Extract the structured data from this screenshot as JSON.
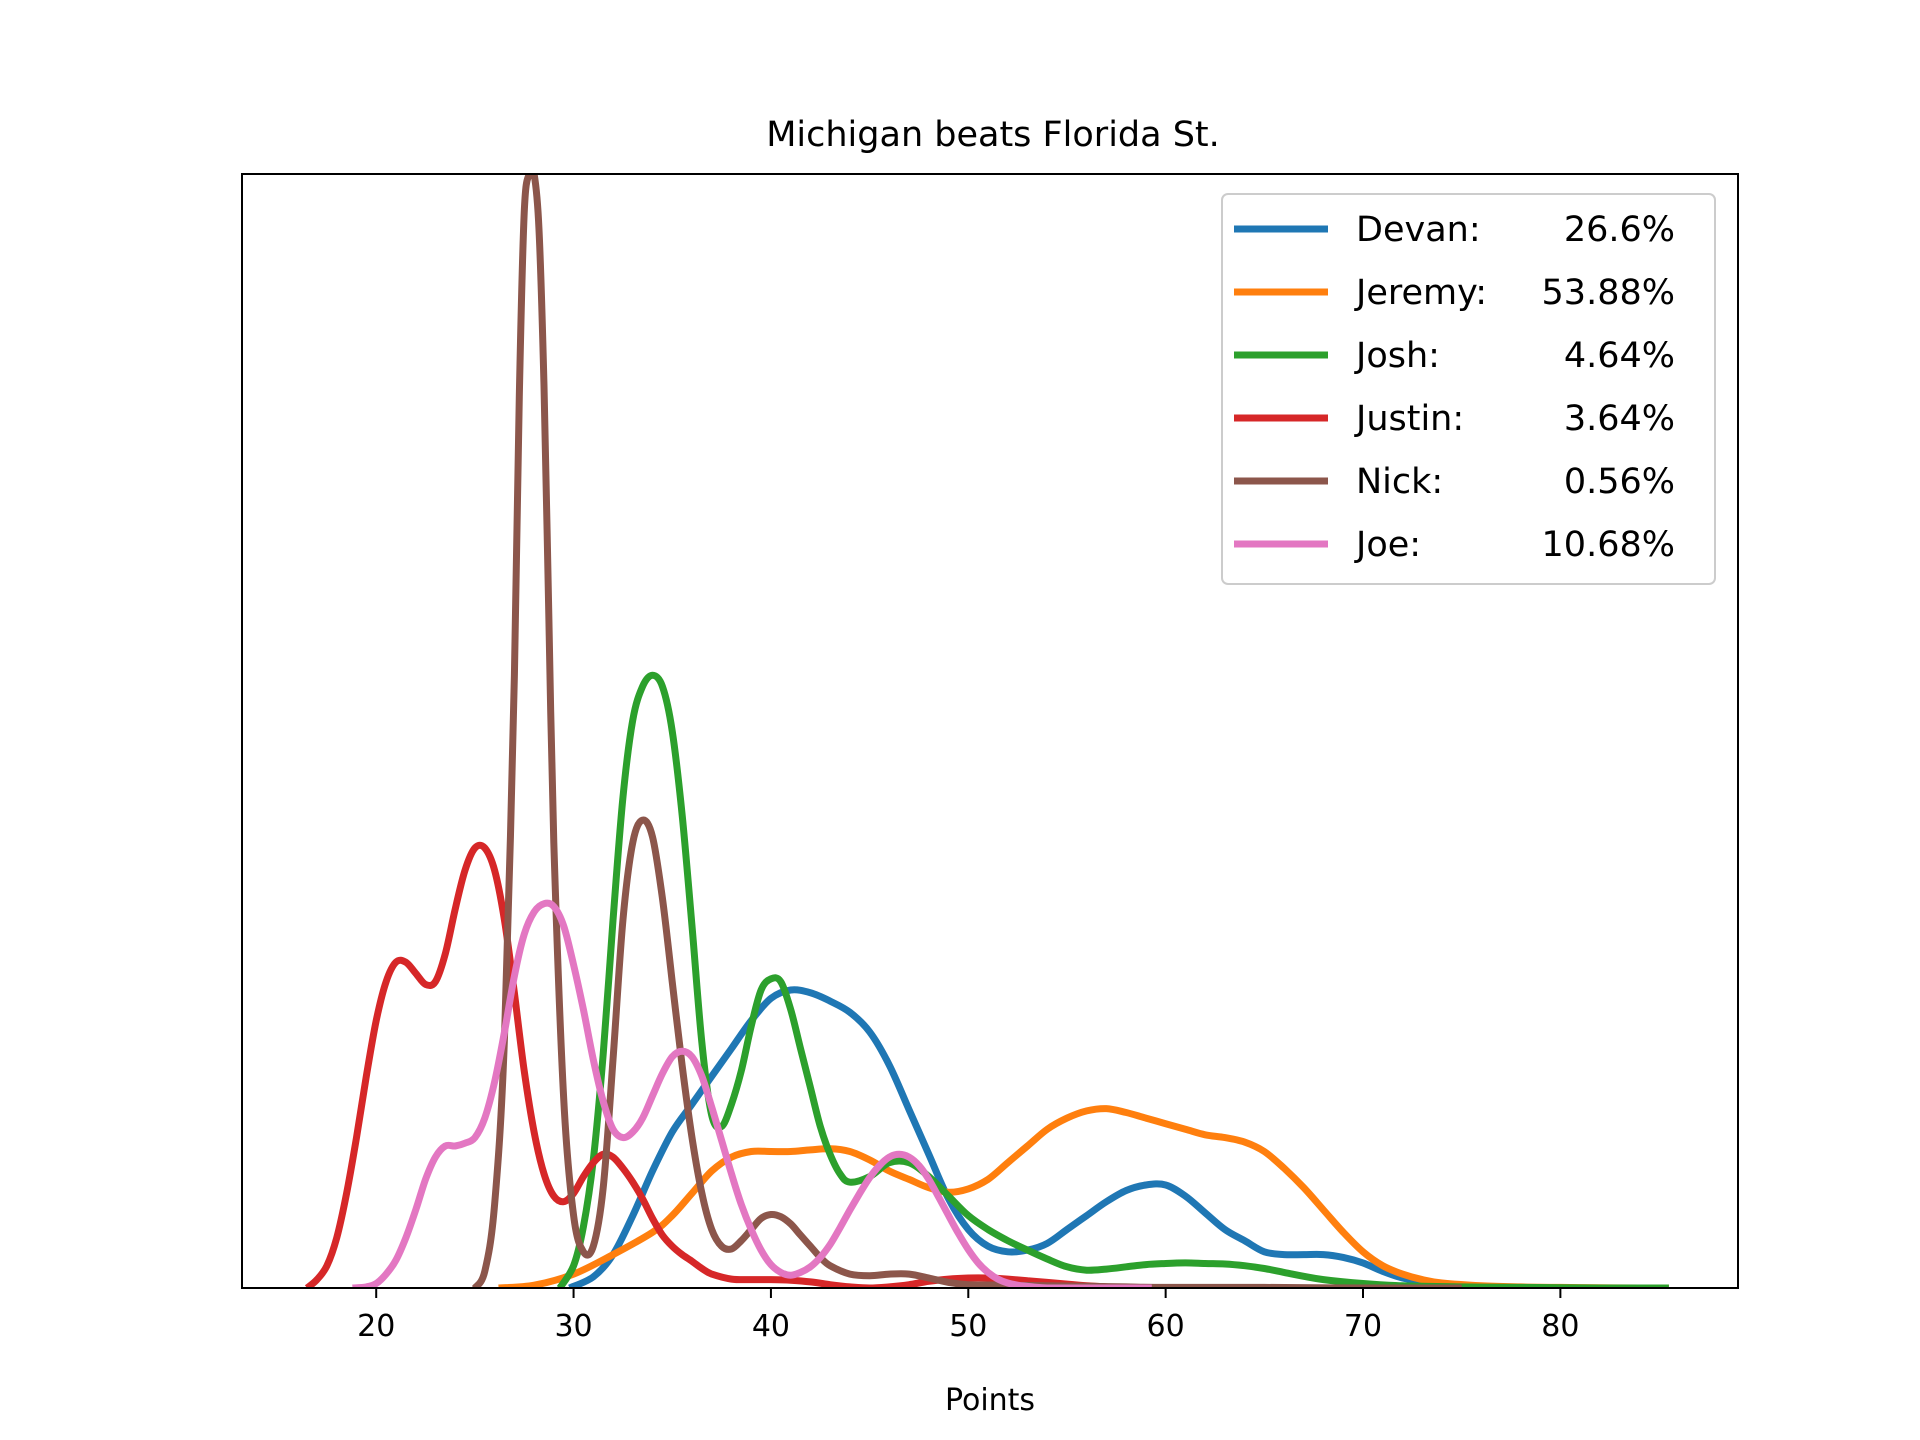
{
  "chart_data": {
    "type": "line",
    "title": "Michigan beats Florida St.",
    "xlabel": "Points",
    "ylabel": "",
    "xlim": [
      13.2,
      89.0
    ],
    "ylim": [
      0,
      0.2
    ],
    "xticks": [
      "20",
      "30",
      "40",
      "50",
      "60",
      "70",
      "80"
    ],
    "yticks_visible": false,
    "grid": false,
    "legend_position": "top-right",
    "legend": [
      {
        "label": "Devan:",
        "value": "26.6%"
      },
      {
        "label": "Jeremy:",
        "value": "53.88%"
      },
      {
        "label": "Josh:",
        "value": "4.64%"
      },
      {
        "label": "Justin:",
        "value": "3.64%"
      },
      {
        "label": "Nick:",
        "value": "0.56%"
      },
      {
        "label": "Joe:",
        "value": "10.68%"
      }
    ],
    "series": [
      {
        "name": "Devan",
        "color": "#1f77b4",
        "x": [
          29.8,
          31,
          32,
          33,
          34,
          35,
          36,
          37,
          38,
          39,
          40,
          41,
          42,
          43,
          44,
          45,
          46,
          47,
          48,
          49,
          50,
          51,
          52,
          53,
          54,
          55,
          56,
          57,
          58,
          59,
          60,
          61,
          62,
          63,
          64,
          65,
          66,
          67,
          68,
          69,
          70,
          71,
          72,
          73,
          74,
          75,
          76,
          77,
          78
        ],
        "y": [
          0.0,
          0.002,
          0.006,
          0.013,
          0.021,
          0.028,
          0.033,
          0.038,
          0.043,
          0.048,
          0.052,
          0.0535,
          0.053,
          0.0515,
          0.0495,
          0.046,
          0.04,
          0.032,
          0.024,
          0.016,
          0.0105,
          0.0075,
          0.0065,
          0.0068,
          0.008,
          0.0105,
          0.013,
          0.0155,
          0.0175,
          0.0185,
          0.0185,
          0.0165,
          0.0135,
          0.0105,
          0.0085,
          0.0065,
          0.006,
          0.006,
          0.006,
          0.0055,
          0.0045,
          0.003,
          0.0018,
          0.0012,
          0.0007,
          0.0004,
          0.0002,
          0.0001,
          0.0
        ]
      },
      {
        "name": "Jeremy",
        "color": "#ff7f0e",
        "x": [
          26.2,
          28,
          30,
          32,
          34,
          35,
          36,
          37,
          38,
          39,
          40,
          41,
          42,
          43,
          44,
          45,
          46,
          47,
          48,
          49,
          50,
          51,
          52,
          53,
          54,
          55,
          56,
          57,
          58,
          59,
          60,
          61,
          62,
          63,
          64,
          65,
          66,
          67,
          68,
          69,
          70,
          71,
          72,
          73,
          74,
          76,
          78,
          80,
          82,
          84,
          85.5
        ],
        "y": [
          0.0,
          0.0005,
          0.0025,
          0.006,
          0.01,
          0.013,
          0.017,
          0.021,
          0.0235,
          0.0245,
          0.0245,
          0.0245,
          0.0248,
          0.025,
          0.0245,
          0.023,
          0.021,
          0.0195,
          0.018,
          0.0172,
          0.0178,
          0.0195,
          0.0225,
          0.0255,
          0.0285,
          0.0305,
          0.0318,
          0.0322,
          0.0315,
          0.0305,
          0.0295,
          0.0285,
          0.0275,
          0.027,
          0.0262,
          0.0245,
          0.0215,
          0.018,
          0.014,
          0.01,
          0.0065,
          0.004,
          0.0025,
          0.0015,
          0.0009,
          0.0004,
          0.0002,
          0.0001,
          5e-05,
          0.0,
          0.0
        ]
      },
      {
        "name": "Josh",
        "color": "#2ca02c",
        "x": [
          29.3,
          30,
          30.5,
          31,
          31.5,
          32,
          32.5,
          33,
          33.5,
          34,
          34.5,
          35,
          35.5,
          36,
          36.5,
          37,
          37.5,
          38,
          38.5,
          39,
          39.5,
          40,
          40.5,
          41,
          41.5,
          42,
          42.5,
          43,
          43.5,
          44,
          45,
          46,
          47,
          48,
          49,
          50,
          51,
          52,
          53,
          54,
          55,
          56,
          57,
          58,
          59,
          60,
          61,
          62,
          63,
          64,
          65,
          66,
          67,
          68,
          70,
          72,
          75,
          78,
          82,
          85.5
        ],
        "y": [
          0.0,
          0.004,
          0.011,
          0.023,
          0.042,
          0.066,
          0.088,
          0.102,
          0.108,
          0.11,
          0.108,
          0.1,
          0.085,
          0.065,
          0.044,
          0.031,
          0.029,
          0.033,
          0.039,
          0.047,
          0.0535,
          0.0555,
          0.055,
          0.05,
          0.043,
          0.036,
          0.029,
          0.024,
          0.0205,
          0.019,
          0.02,
          0.0225,
          0.0225,
          0.02,
          0.0165,
          0.013,
          0.0105,
          0.0085,
          0.0068,
          0.0052,
          0.0038,
          0.0032,
          0.0034,
          0.0038,
          0.0042,
          0.0044,
          0.0045,
          0.0044,
          0.0043,
          0.004,
          0.0035,
          0.0028,
          0.0021,
          0.0015,
          0.0008,
          0.0004,
          0.0002,
          0.0001,
          0.0,
          0.0
        ]
      },
      {
        "name": "Justin",
        "color": "#d62728",
        "x": [
          16.5,
          17,
          17.5,
          18,
          18.5,
          19,
          19.5,
          20,
          20.5,
          21,
          21.5,
          22,
          22.5,
          23,
          23.5,
          24,
          24.5,
          25,
          25.5,
          26,
          26.5,
          27,
          27.5,
          28,
          28.5,
          29,
          29.5,
          30,
          30.5,
          31,
          31.5,
          32,
          32.5,
          33,
          33.5,
          34,
          34.5,
          35,
          35.5,
          36,
          36.5,
          37,
          38,
          39,
          40,
          41,
          42,
          43,
          44,
          45,
          46,
          47,
          48,
          49,
          50,
          51,
          52,
          53,
          54,
          55,
          56,
          57,
          58
        ],
        "y": [
          0.0,
          0.0015,
          0.004,
          0.009,
          0.017,
          0.027,
          0.038,
          0.048,
          0.055,
          0.0585,
          0.0585,
          0.0565,
          0.0545,
          0.055,
          0.06,
          0.068,
          0.075,
          0.079,
          0.079,
          0.075,
          0.066,
          0.053,
          0.039,
          0.028,
          0.0205,
          0.0165,
          0.0155,
          0.017,
          0.02,
          0.0225,
          0.024,
          0.0235,
          0.0215,
          0.019,
          0.016,
          0.0125,
          0.0095,
          0.0075,
          0.006,
          0.0048,
          0.0035,
          0.0025,
          0.0016,
          0.0015,
          0.0015,
          0.0014,
          0.0011,
          0.0006,
          0.0002,
          0.0,
          0.0002,
          0.0006,
          0.0012,
          0.0016,
          0.0018,
          0.0018,
          0.0016,
          0.0013,
          0.001,
          0.0007,
          0.0004,
          0.0002,
          0.0
        ]
      },
      {
        "name": "Nick",
        "color": "#8c564b",
        "x": [
          25,
          25.5,
          26,
          26.5,
          27,
          27.25,
          27.5,
          27.75,
          28,
          28.25,
          28.5,
          28.75,
          29,
          29.5,
          30,
          30.5,
          31,
          31.5,
          32,
          32.5,
          33,
          33.5,
          34,
          34.5,
          35,
          35.5,
          36,
          36.5,
          37,
          37.5,
          38,
          38.5,
          39,
          39.5,
          40,
          40.5,
          41,
          41.5,
          42,
          42.5,
          43,
          44,
          45,
          46,
          47,
          48,
          49,
          50,
          52,
          54,
          56,
          58,
          60,
          65,
          70,
          75
        ],
        "y": [
          0.0,
          0.003,
          0.015,
          0.045,
          0.11,
          0.16,
          0.193,
          0.2,
          0.2,
          0.19,
          0.162,
          0.12,
          0.08,
          0.034,
          0.013,
          0.0065,
          0.0075,
          0.018,
          0.041,
          0.066,
          0.08,
          0.084,
          0.081,
          0.07,
          0.055,
          0.04,
          0.027,
          0.017,
          0.0105,
          0.0075,
          0.007,
          0.0085,
          0.0105,
          0.0125,
          0.0132,
          0.0128,
          0.0115,
          0.0095,
          0.0075,
          0.0055,
          0.004,
          0.0025,
          0.0022,
          0.0025,
          0.0025,
          0.0018,
          0.001,
          0.0006,
          0.0005,
          0.0004,
          0.0003,
          0.0002,
          0.0001,
          0.0001,
          0.0,
          0.0
        ]
      },
      {
        "name": "Joe",
        "color": "#e377c2",
        "x": [
          18.8,
          19.5,
          20,
          20.5,
          21,
          21.5,
          22,
          22.5,
          23,
          23.5,
          24,
          24.5,
          25,
          25.5,
          26,
          26.5,
          27,
          27.5,
          28,
          28.5,
          29,
          29.5,
          30,
          30.5,
          31,
          31.5,
          32,
          32.5,
          33,
          33.5,
          34,
          34.5,
          35,
          35.5,
          36,
          36.5,
          37,
          37.5,
          38,
          38.5,
          39,
          39.5,
          40,
          40.5,
          41,
          41.5,
          42,
          42.5,
          43,
          43.5,
          44,
          44.5,
          45,
          45.5,
          46,
          46.5,
          47,
          47.5,
          48,
          48.5,
          49,
          49.5,
          50,
          50.5,
          51,
          51.5,
          52,
          52.5,
          53,
          53.5,
          54,
          54.5,
          55,
          55.5,
          56,
          57,
          58,
          59.3
        ],
        "y": [
          0.0,
          0.0002,
          0.0008,
          0.0025,
          0.005,
          0.009,
          0.014,
          0.0195,
          0.0235,
          0.0255,
          0.0255,
          0.026,
          0.027,
          0.0305,
          0.037,
          0.046,
          0.056,
          0.0635,
          0.0675,
          0.069,
          0.0685,
          0.065,
          0.058,
          0.05,
          0.041,
          0.0335,
          0.0285,
          0.027,
          0.028,
          0.0305,
          0.0345,
          0.0385,
          0.0415,
          0.0425,
          0.0415,
          0.038,
          0.0325,
          0.0265,
          0.0205,
          0.015,
          0.0105,
          0.0068,
          0.0042,
          0.0028,
          0.0023,
          0.0028,
          0.0038,
          0.0055,
          0.0078,
          0.0108,
          0.014,
          0.017,
          0.0198,
          0.022,
          0.0235,
          0.024,
          0.0235,
          0.022,
          0.0195,
          0.0163,
          0.013,
          0.0098,
          0.0069,
          0.0045,
          0.0028,
          0.0016,
          0.0009,
          0.0005,
          0.0003,
          0.0001,
          0.0,
          0.0,
          0.0,
          0.0,
          0.0,
          0.0,
          0.0,
          0.0
        ]
      }
    ]
  }
}
